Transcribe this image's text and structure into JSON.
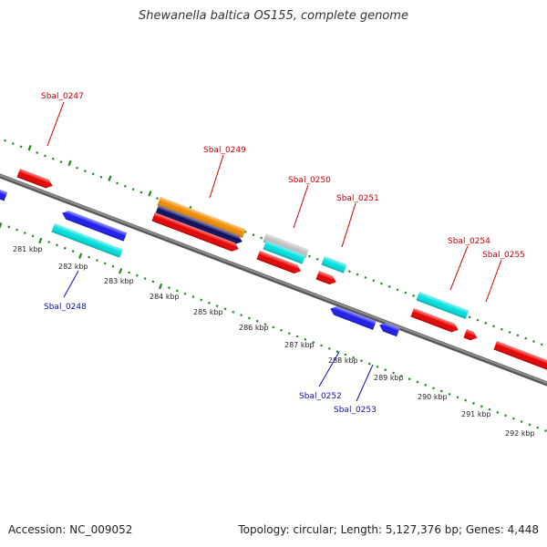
{
  "title": "Shewanella baltica OS155, complete genome",
  "footer": {
    "accession": "Accession: NC_009052",
    "summary": "Topology: circular; Length: 5,127,376 bp; Genes: 4,448"
  },
  "colors": {
    "backbone": "#8c8c8c",
    "tick": "#1f8a1f",
    "label_forward": "#cc0000",
    "label_reverse": "#1010aa",
    "red": "#e60000",
    "blue": "#1a1aee",
    "cyan": "#00dede",
    "orange": "#f08c00",
    "navy": "#0a0a5a",
    "gray": "#c0c0c0"
  },
  "axis_labels": [
    "281 kbp",
    "282 kbp",
    "283 kbp",
    "284 kbp",
    "285 kbp",
    "286 kbp",
    "287 kbp",
    "288 kbp",
    "289 kbp",
    "290 kbp",
    "291 kbp",
    "292 kbp"
  ],
  "gene_labels": [
    {
      "text": "Sbal_0247",
      "strand": "forward"
    },
    {
      "text": "Sbal_0249",
      "strand": "forward"
    },
    {
      "text": "Sbal_0250",
      "strand": "forward"
    },
    {
      "text": "Sbal_0251",
      "strand": "forward"
    },
    {
      "text": "Sbal_0254",
      "strand": "forward"
    },
    {
      "text": "Sbal_0255",
      "strand": "forward"
    },
    {
      "text": "Sbal_0248",
      "strand": "reverse"
    },
    {
      "text": "Sbal_0252",
      "strand": "reverse"
    },
    {
      "text": "Sbal_0253",
      "strand": "reverse"
    }
  ]
}
